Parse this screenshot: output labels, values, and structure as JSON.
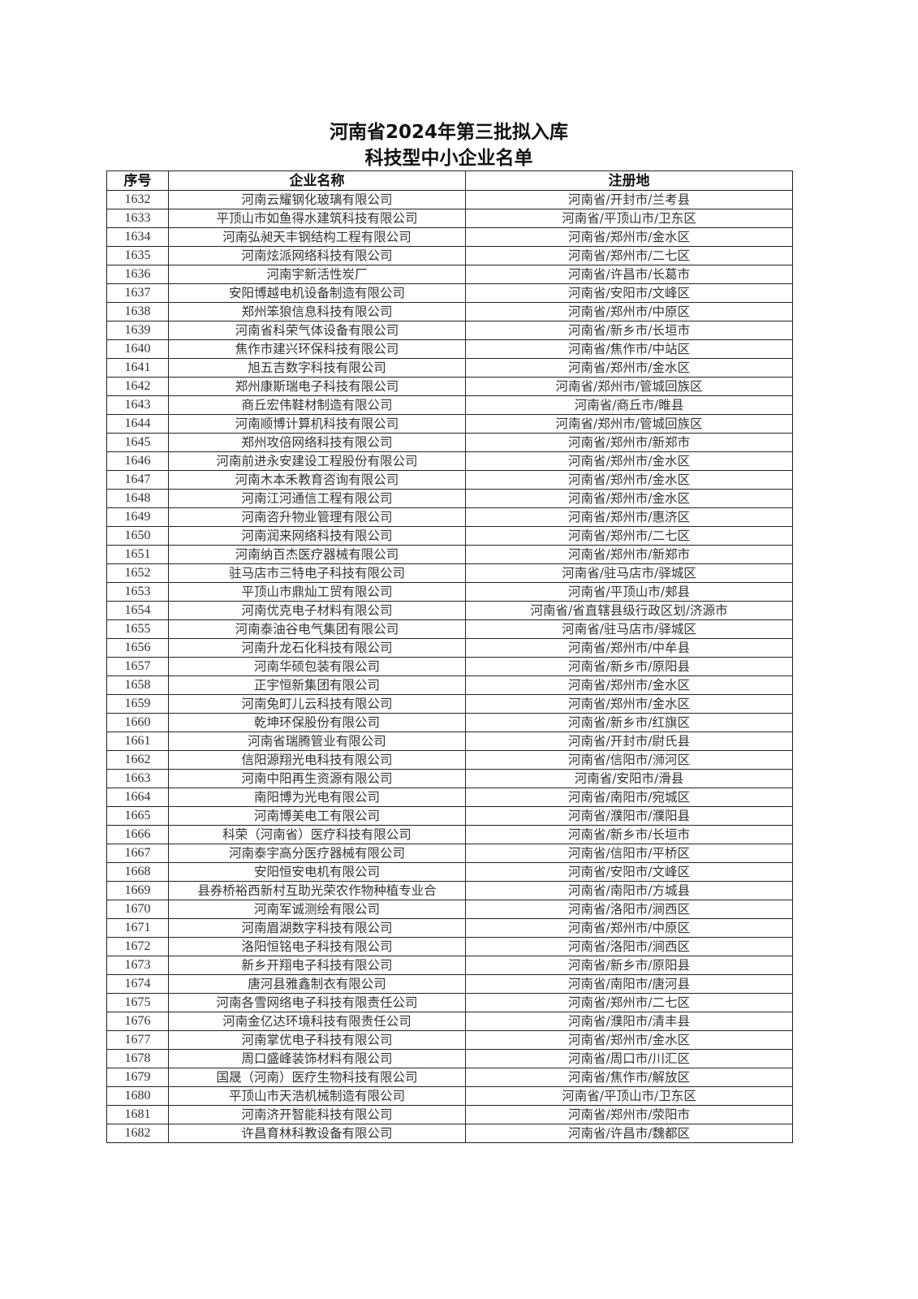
{
  "title_line1": "河南省2024年第三批拟入库",
  "title_line2": "科技型中小企业名单",
  "table": {
    "headers": [
      "序号",
      "企业名称",
      "注册地"
    ],
    "rows": [
      [
        "1632",
        "河南云耀钢化玻璃有限公司",
        "河南省/开封市/兰考县"
      ],
      [
        "1633",
        "平顶山市如鱼得水建筑科技有限公司",
        "河南省/平顶山市/卫东区"
      ],
      [
        "1634",
        "河南弘昶天丰钢结构工程有限公司",
        "河南省/郑州市/金水区"
      ],
      [
        "1635",
        "河南炫派网络科技有限公司",
        "河南省/郑州市/二七区"
      ],
      [
        "1636",
        "河南宇新活性炭厂",
        "河南省/许昌市/长葛市"
      ],
      [
        "1637",
        "安阳博越电机设备制造有限公司",
        "河南省/安阳市/文峰区"
      ],
      [
        "1638",
        "郑州笨狼信息科技有限公司",
        "河南省/郑州市/中原区"
      ],
      [
        "1639",
        "河南省科荣气体设备有限公司",
        "河南省/新乡市/长垣市"
      ],
      [
        "1640",
        "焦作市建兴环保科技有限公司",
        "河南省/焦作市/中站区"
      ],
      [
        "1641",
        "旭五吉数字科技有限公司",
        "河南省/郑州市/金水区"
      ],
      [
        "1642",
        "郑州康斯瑞电子科技有限公司",
        "河南省/郑州市/管城回族区"
      ],
      [
        "1643",
        "商丘宏伟鞋材制造有限公司",
        "河南省/商丘市/睢县"
      ],
      [
        "1644",
        "河南顺博计算机科技有限公司",
        "河南省/郑州市/管城回族区"
      ],
      [
        "1645",
        "郑州攻倍网络科技有限公司",
        "河南省/郑州市/新郑市"
      ],
      [
        "1646",
        "河南前进永安建设工程股份有限公司",
        "河南省/郑州市/金水区"
      ],
      [
        "1647",
        "河南木本禾教育咨询有限公司",
        "河南省/郑州市/金水区"
      ],
      [
        "1648",
        "河南江河通信工程有限公司",
        "河南省/郑州市/金水区"
      ],
      [
        "1649",
        "河南咨升物业管理有限公司",
        "河南省/郑州市/惠济区"
      ],
      [
        "1650",
        "河南润来网络科技有限公司",
        "河南省/郑州市/二七区"
      ],
      [
        "1651",
        "河南纳百杰医疗器械有限公司",
        "河南省/郑州市/新郑市"
      ],
      [
        "1652",
        "驻马店市三特电子科技有限公司",
        "河南省/驻马店市/驿城区"
      ],
      [
        "1653",
        "平顶山市鼎灿工贸有限公司",
        "河南省/平顶山市/郏县"
      ],
      [
        "1654",
        "河南优克电子材料有限公司",
        "河南省/省直辖县级行政区划/济源市"
      ],
      [
        "1655",
        "河南泰油谷电气集团有限公司",
        "河南省/驻马店市/驿城区"
      ],
      [
        "1656",
        "河南升龙石化科技有限公司",
        "河南省/郑州市/中牟县"
      ],
      [
        "1657",
        "河南华硕包装有限公司",
        "河南省/新乡市/原阳县"
      ],
      [
        "1658",
        "正宇恒新集团有限公司",
        "河南省/郑州市/金水区"
      ],
      [
        "1659",
        "河南兔町儿云科技有限公司",
        "河南省/郑州市/金水区"
      ],
      [
        "1660",
        "乾坤环保股份有限公司",
        "河南省/新乡市/红旗区"
      ],
      [
        "1661",
        "河南省瑞腾管业有限公司",
        "河南省/开封市/尉氏县"
      ],
      [
        "1662",
        "信阳源翔光电科技有限公司",
        "河南省/信阳市/浉河区"
      ],
      [
        "1663",
        "河南中阳再生资源有限公司",
        "河南省/安阳市/滑县"
      ],
      [
        "1664",
        "南阳博为光电有限公司",
        "河南省/南阳市/宛城区"
      ],
      [
        "1665",
        "河南博美电工有限公司",
        "河南省/濮阳市/濮阳县"
      ],
      [
        "1666",
        "科荣（河南省）医疗科技有限公司",
        "河南省/新乡市/长垣市"
      ],
      [
        "1667",
        "河南泰宇高分医疗器械有限公司",
        "河南省/信阳市/平桥区"
      ],
      [
        "1668",
        "安阳恒安电机有限公司",
        "河南省/安阳市/文峰区"
      ],
      [
        "1669",
        "县券桥裕西新村互助光荣农作物种植专业合",
        "河南省/南阳市/方城县"
      ],
      [
        "1670",
        "河南军诚测绘有限公司",
        "河南省/洛阳市/涧西区"
      ],
      [
        "1671",
        "河南眉湖数字科技有限公司",
        "河南省/郑州市/中原区"
      ],
      [
        "1672",
        "洛阳恒铭电子科技有限公司",
        "河南省/洛阳市/涧西区"
      ],
      [
        "1673",
        "新乡开翔电子科技有限公司",
        "河南省/新乡市/原阳县"
      ],
      [
        "1674",
        "唐河县雅鑫制衣有限公司",
        "河南省/南阳市/唐河县"
      ],
      [
        "1675",
        "河南各雪网络电子科技有限责任公司",
        "河南省/郑州市/二七区"
      ],
      [
        "1676",
        "河南金亿达环境科技有限责任公司",
        "河南省/濮阳市/清丰县"
      ],
      [
        "1677",
        "河南掌优电子科技有限公司",
        "河南省/郑州市/金水区"
      ],
      [
        "1678",
        "周口盛峰装饰材料有限公司",
        "河南省/周口市/川汇区"
      ],
      [
        "1679",
        "国晟（河南）医疗生物科技有限公司",
        "河南省/焦作市/解放区"
      ],
      [
        "1680",
        "平顶山市天浩机械制造有限公司",
        "河南省/平顶山市/卫东区"
      ],
      [
        "1681",
        "河南济开智能科技有限公司",
        "河南省/郑州市/荥阳市"
      ],
      [
        "1682",
        "许昌育林科教设备有限公司",
        "河南省/许昌市/魏都区"
      ]
    ]
  }
}
